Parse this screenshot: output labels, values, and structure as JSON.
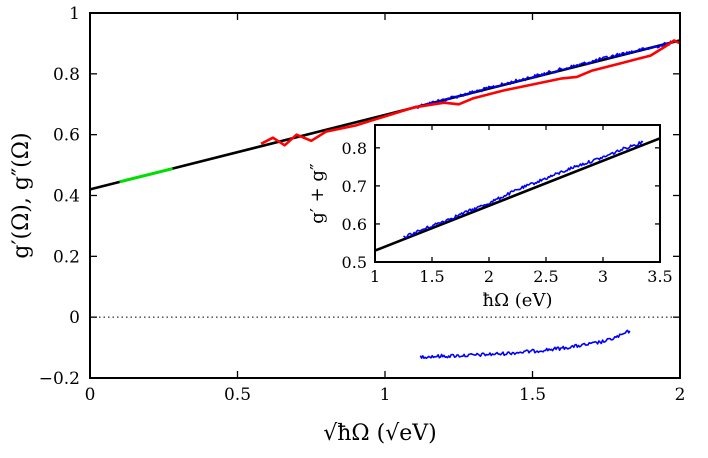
{
  "chart_data": [
    {
      "type": "line",
      "title": "",
      "xlabel": "√ħΩ (√eV)",
      "ylabel": "g′(Ω), g″(Ω)",
      "xlim": [
        0,
        2
      ],
      "ylim": [
        -0.2,
        1
      ],
      "x_ticks": [
        "0",
        "0.5",
        "1",
        "1.5",
        "2"
      ],
      "y_ticks": [
        "−0.2",
        "0",
        "0.2",
        "0.4",
        "0.6",
        "0.8",
        "1"
      ],
      "zero_line": {
        "y": 0,
        "style": "dotted"
      },
      "grid": false,
      "legend": "none",
      "series": [
        {
          "color": "#000000",
          "style": "solid",
          "x": [
            0,
            2
          ],
          "y": [
            0.42,
            0.91
          ]
        },
        {
          "color": "#00e000",
          "style": "solid",
          "x": [
            0.1,
            0.28
          ],
          "y": [
            0.445,
            0.488
          ]
        },
        {
          "color": "#0000ff",
          "style": "noisy",
          "x": [
            1.1,
            1.2,
            1.3,
            1.4,
            1.5,
            1.6,
            1.7,
            1.8,
            1.9,
            1.98
          ],
          "y": [
            0.69,
            0.715,
            0.74,
            0.765,
            0.79,
            0.815,
            0.84,
            0.865,
            0.885,
            0.905
          ]
        },
        {
          "color": "#ff0000",
          "style": "solid",
          "x": [
            0.58,
            0.62,
            0.66,
            0.7,
            0.75,
            0.8,
            0.9,
            1.0,
            1.1,
            1.2,
            1.25,
            1.3,
            1.4,
            1.5,
            1.6,
            1.65,
            1.7,
            1.8,
            1.9,
            1.95,
            1.98,
            2.0
          ],
          "y": [
            0.57,
            0.59,
            0.565,
            0.6,
            0.58,
            0.61,
            0.63,
            0.66,
            0.69,
            0.705,
            0.7,
            0.72,
            0.745,
            0.765,
            0.785,
            0.79,
            0.81,
            0.835,
            0.86,
            0.89,
            0.91,
            0.9
          ]
        },
        {
          "color": "#0000ff",
          "style": "noisy",
          "x": [
            1.12,
            1.2,
            1.3,
            1.4,
            1.5,
            1.6,
            1.7,
            1.75,
            1.8,
            1.83
          ],
          "y": [
            -0.13,
            -0.128,
            -0.125,
            -0.12,
            -0.112,
            -0.102,
            -0.088,
            -0.078,
            -0.06,
            -0.045
          ]
        }
      ]
    },
    {
      "type": "line",
      "title": "",
      "xlabel": "ħΩ (eV)",
      "ylabel": "g′ + g″",
      "xlim": [
        1,
        3.5
      ],
      "ylim": [
        0.5,
        0.86
      ],
      "x_ticks": [
        "1",
        "1.5",
        "2",
        "2.5",
        "3",
        "3.5"
      ],
      "y_ticks": [
        "0.5",
        "0.6",
        "0.7",
        "0.8"
      ],
      "grid": false,
      "legend": "none",
      "series": [
        {
          "color": "#000000",
          "style": "solid",
          "x": [
            1,
            3.5
          ],
          "y": [
            0.53,
            0.825
          ]
        },
        {
          "color": "#0000ff",
          "style": "noisy",
          "x": [
            1.25,
            1.5,
            1.75,
            2.0,
            2.25,
            2.5,
            2.75,
            3.0,
            3.2,
            3.35
          ],
          "y": [
            0.565,
            0.595,
            0.625,
            0.655,
            0.69,
            0.72,
            0.75,
            0.775,
            0.8,
            0.815
          ]
        }
      ]
    }
  ]
}
